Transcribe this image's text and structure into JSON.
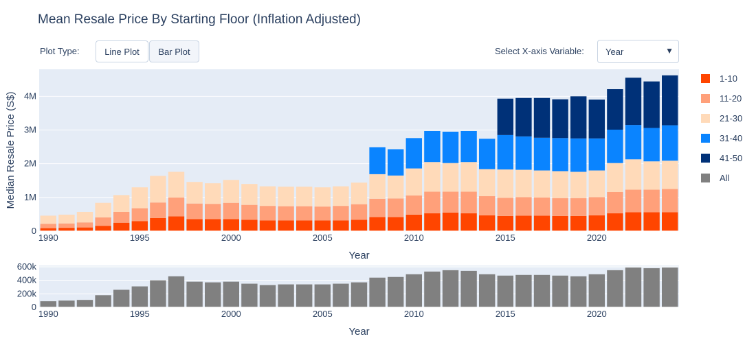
{
  "title": "Mean Resale Price By Starting Floor (Inflation Adjusted)",
  "controls": {
    "plot_type_label": "Plot Type:",
    "line_plot_label": "Line Plot",
    "bar_plot_label": "Bar Plot",
    "xaxis_select_label": "Select X-axis Variable:",
    "xaxis_selected": "Year",
    "dropdown_arrow": "▼"
  },
  "colors": {
    "1-10": "#ff4500",
    "11-20": "#ffa07a",
    "21-30": "#ffdab9",
    "31-40": "#0a84ff",
    "41-50": "#003178",
    "All": "#808080",
    "plot_bg": "#e5ecf6"
  },
  "chart_data": [
    {
      "type": "bar",
      "stacked": true,
      "xlabel": "Year",
      "ylabel": "Median Resale Price (S$)",
      "ylim": [
        0,
        4800000
      ],
      "yticks": [
        0,
        1000000,
        2000000,
        3000000,
        4000000
      ],
      "ytick_labels": [
        "0",
        "1M",
        "2M",
        "3M",
        "4M"
      ],
      "xticks": [
        1990,
        1995,
        2000,
        2005,
        2010,
        2015,
        2020
      ],
      "x": [
        1990,
        1991,
        1992,
        1993,
        1994,
        1995,
        1996,
        1997,
        1998,
        1999,
        2000,
        2001,
        2002,
        2003,
        2004,
        2005,
        2006,
        2007,
        2008,
        2009,
        2010,
        2011,
        2012,
        2013,
        2014,
        2015,
        2016,
        2017,
        2018,
        2019,
        2020,
        2021,
        2022,
        2023,
        2024
      ],
      "series": [
        {
          "name": "1-10",
          "values": [
            90000,
            100000,
            110000,
            160000,
            250000,
            300000,
            390000,
            440000,
            360000,
            360000,
            360000,
            340000,
            320000,
            320000,
            320000,
            320000,
            320000,
            340000,
            420000,
            420000,
            490000,
            530000,
            550000,
            530000,
            470000,
            450000,
            460000,
            460000,
            450000,
            450000,
            470000,
            530000,
            560000,
            560000,
            560000
          ]
        },
        {
          "name": "11-20",
          "values": [
            130000,
            130000,
            150000,
            250000,
            320000,
            380000,
            460000,
            560000,
            460000,
            450000,
            480000,
            440000,
            430000,
            420000,
            420000,
            410000,
            430000,
            460000,
            540000,
            550000,
            570000,
            640000,
            620000,
            640000,
            570000,
            540000,
            550000,
            540000,
            530000,
            530000,
            540000,
            630000,
            670000,
            670000,
            690000
          ]
        },
        {
          "name": "21-30",
          "values": [
            240000,
            260000,
            310000,
            430000,
            500000,
            620000,
            790000,
            760000,
            640000,
            610000,
            680000,
            620000,
            580000,
            580000,
            580000,
            570000,
            580000,
            640000,
            730000,
            680000,
            800000,
            880000,
            850000,
            880000,
            800000,
            840000,
            810000,
            800000,
            800000,
            780000,
            790000,
            860000,
            900000,
            840000,
            840000
          ]
        },
        {
          "name": "31-40",
          "values": [
            0,
            0,
            0,
            0,
            0,
            0,
            0,
            0,
            0,
            0,
            0,
            0,
            0,
            0,
            0,
            0,
            0,
            0,
            800000,
            780000,
            900000,
            920000,
            930000,
            920000,
            900000,
            1020000,
            990000,
            970000,
            980000,
            990000,
            950000,
            990000,
            1020000,
            990000,
            1050000
          ]
        },
        {
          "name": "41-50",
          "values": [
            0,
            0,
            0,
            0,
            0,
            0,
            0,
            0,
            0,
            0,
            0,
            0,
            0,
            0,
            0,
            0,
            0,
            0,
            0,
            0,
            0,
            0,
            0,
            0,
            0,
            1080000,
            1140000,
            1180000,
            1150000,
            1250000,
            1150000,
            1200000,
            1400000,
            1380000,
            1480000
          ]
        }
      ]
    },
    {
      "type": "bar",
      "xlabel": "Year",
      "ylim": [
        0,
        620000
      ],
      "yticks": [
        0,
        200000,
        400000,
        600000
      ],
      "ytick_labels": [
        "0",
        "200k",
        "400k",
        "600k"
      ],
      "xticks": [
        1990,
        1995,
        2000,
        2005,
        2010,
        2015,
        2020
      ],
      "x": [
        1990,
        1991,
        1992,
        1993,
        1994,
        1995,
        1996,
        1997,
        1998,
        1999,
        2000,
        2001,
        2002,
        2003,
        2004,
        2005,
        2006,
        2007,
        2008,
        2009,
        2010,
        2011,
        2012,
        2013,
        2014,
        2015,
        2016,
        2017,
        2018,
        2019,
        2020,
        2021,
        2022,
        2023,
        2024
      ],
      "series": [
        {
          "name": "All",
          "values": [
            90000,
            100000,
            110000,
            180000,
            260000,
            310000,
            400000,
            460000,
            380000,
            370000,
            380000,
            350000,
            330000,
            340000,
            340000,
            340000,
            350000,
            370000,
            440000,
            450000,
            490000,
            530000,
            550000,
            540000,
            490000,
            470000,
            480000,
            480000,
            470000,
            460000,
            490000,
            550000,
            590000,
            580000,
            590000
          ]
        }
      ]
    }
  ],
  "legend": [
    "1-10",
    "11-20",
    "21-30",
    "31-40",
    "41-50",
    "All"
  ]
}
